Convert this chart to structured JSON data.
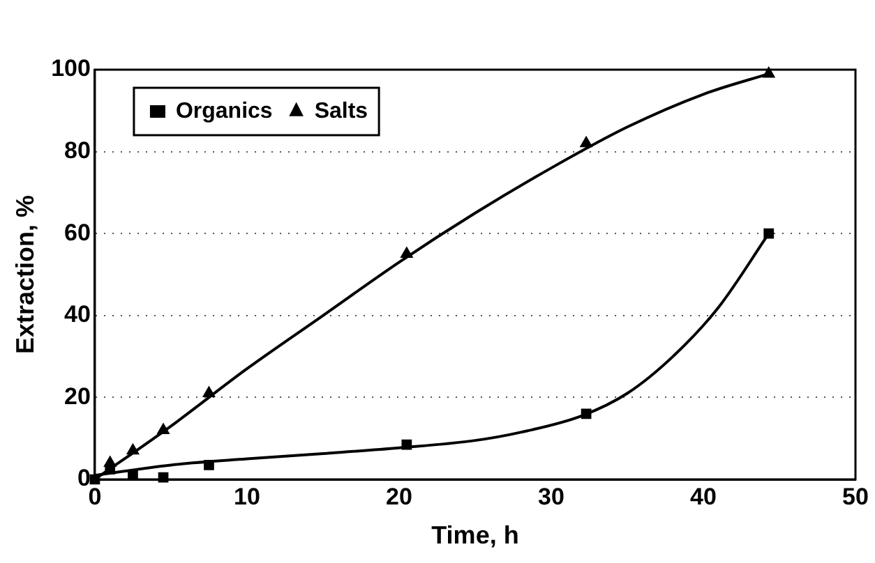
{
  "chart_data": {
    "type": "scatter",
    "xlabel": "Time, h",
    "ylabel": "Extraction, %",
    "xlim": [
      0,
      50
    ],
    "xticks": [
      0,
      10,
      20,
      30,
      40,
      50
    ],
    "ylim": [
      0,
      100
    ],
    "yticks": [
      0,
      20,
      40,
      60,
      80,
      100
    ],
    "grid": "y",
    "legend": "top left",
    "series": [
      {
        "name": "Organics",
        "type": "scatter",
        "marker": "square",
        "color": "#000000",
        "x": [
          0,
          1,
          2.5,
          4.5,
          7.5,
          20.5,
          32.3,
          44.3
        ],
        "values": [
          0,
          2.5,
          1,
          0.5,
          3.5,
          8.5,
          16,
          60
        ]
      },
      {
        "name": "Salts",
        "type": "scatter",
        "marker": "triangle",
        "color": "#000000",
        "x": [
          1,
          2.5,
          4.5,
          7.5,
          20.5,
          32.3,
          44.3
        ],
        "values": [
          4,
          7,
          12,
          21,
          55,
          82,
          99
        ]
      },
      {
        "type": "line",
        "marker": "none",
        "color": "#000000",
        "x": [
          0,
          5,
          10,
          15,
          20,
          25,
          28,
          32,
          35,
          38,
          41,
          44.3
        ],
        "values": [
          1,
          3.5,
          5,
          6.3,
          7.7,
          9.5,
          11.5,
          15.5,
          21,
          30,
          42,
          60
        ]
      },
      {
        "type": "line",
        "marker": "none",
        "color": "#000000",
        "x": [
          0,
          5,
          10,
          15,
          20,
          25,
          30,
          35,
          40,
          44.3
        ],
        "values": [
          0,
          13,
          27,
          40,
          53,
          65,
          76,
          86,
          94,
          99
        ]
      }
    ]
  }
}
